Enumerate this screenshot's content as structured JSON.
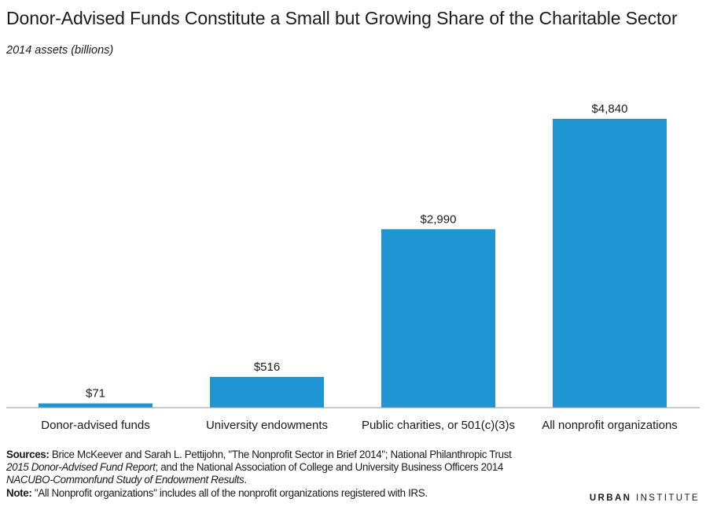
{
  "chart_data": {
    "type": "bar",
    "title": "Donor-Advised Funds Constitute a Small but Growing Share of the Charitable Sector",
    "subtitle": "2014 assets (billions)",
    "categories": [
      "Donor-advised funds",
      "University endowments",
      "Public charities, or 501(c)(3)s",
      "All nonprofit organizations"
    ],
    "values": [
      71,
      516,
      2990,
      4840
    ],
    "value_labels": [
      "$71",
      "$516",
      "$2,990",
      "$4,840"
    ],
    "xlabel": "",
    "ylabel": "",
    "ylim": [
      0,
      4840
    ],
    "grid": false,
    "bar_color": "#1f96d3"
  },
  "footer": {
    "sources_label": "Sources:",
    "sources_text_1": " Brice McKeever and Sarah L. Pettijohn, \"The Nonprofit Sector in Brief 2014\"; National Philanthropic Trust",
    "sources_italic_1": "2015 Donor-Advised Fund Report",
    "sources_text_2": "; and the National Association of College and University Business Officers 2014",
    "sources_italic_2": "NACUBO-Commonfund Study of Endowment Results",
    "sources_text_3": ".",
    "note_label": "Note:",
    "note_text": " \"All Nonprofit organizations\" includes all of the nonprofit organizations registered with IRS.",
    "brand_bold": "URBAN",
    "brand_regular": " INSTITUTE"
  }
}
